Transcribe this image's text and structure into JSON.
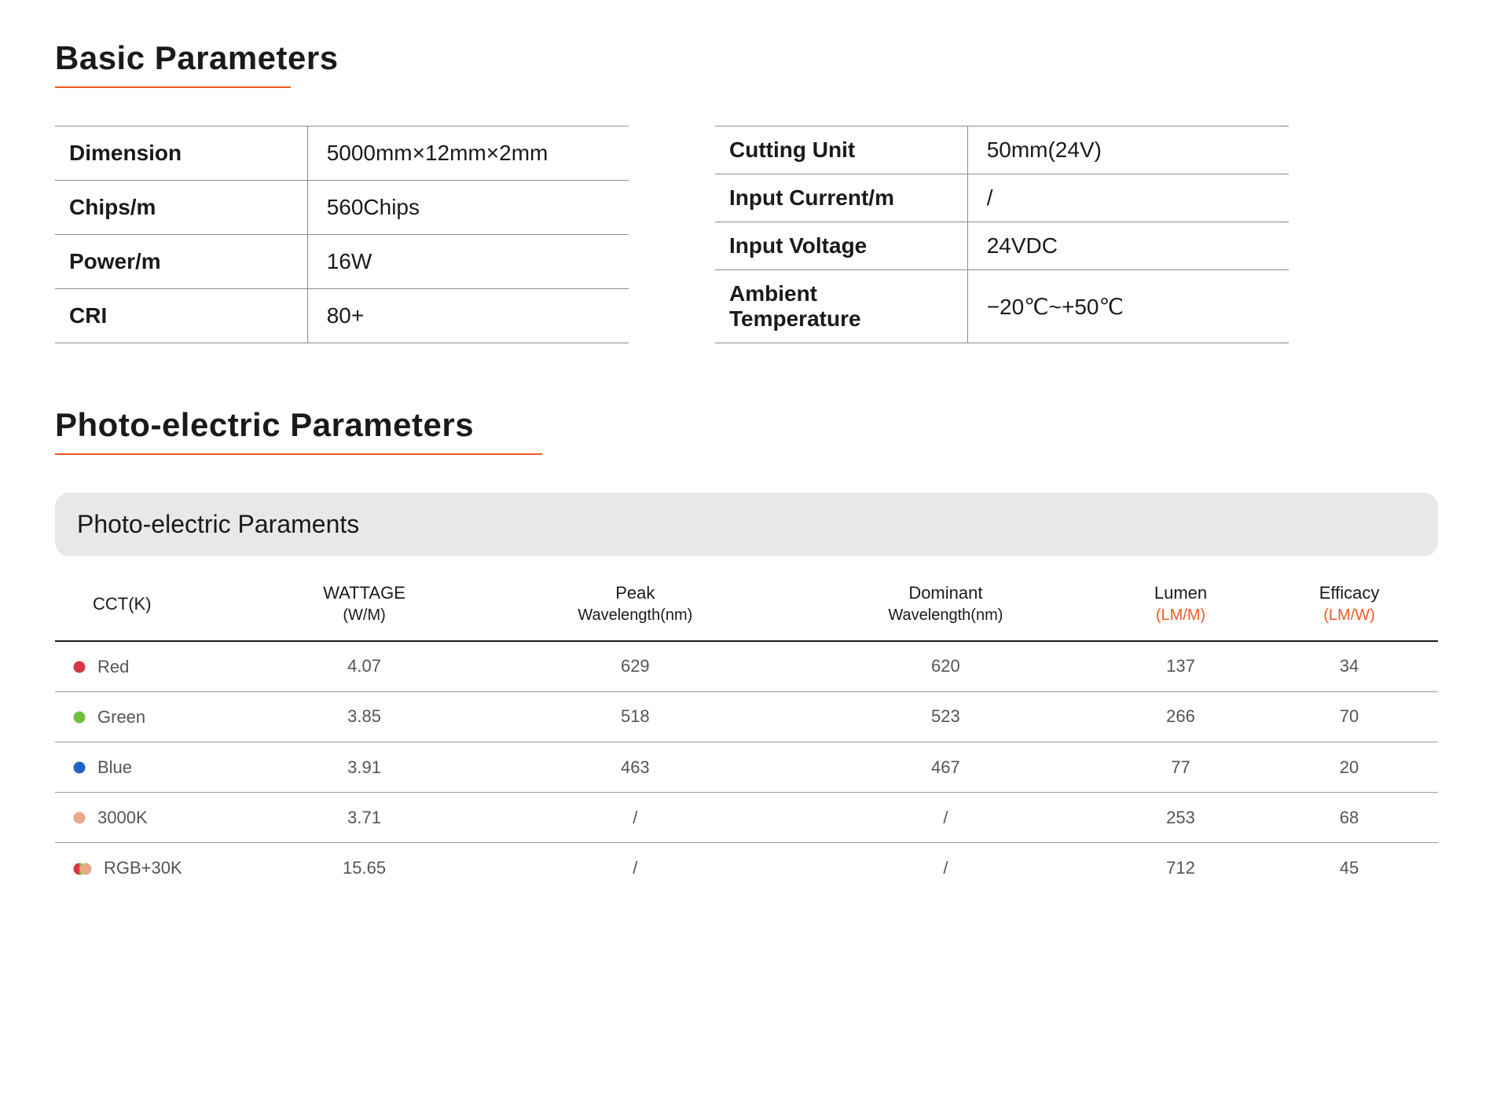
{
  "colors": {
    "accent": "#ee5a24",
    "text": "#1a1a1a",
    "muted": "#555555",
    "border": "#8a8a8a",
    "header_bar_bg": "#e8e8e8",
    "table_header_border": "#1a1a1a",
    "red_dot": "#d63645",
    "green_dot": "#6fbf3f",
    "blue_dot": "#1e63c4",
    "warm_dot": "#e8a98a"
  },
  "basic": {
    "title": "Basic Parameters",
    "left": [
      {
        "label": "Dimension",
        "value": "5000mm×12mm×2mm"
      },
      {
        "label": "Chips/m",
        "value": "560Chips"
      },
      {
        "label": "Power/m",
        "value": "16W"
      },
      {
        "label": "CRI",
        "value": "80+"
      }
    ],
    "right": [
      {
        "label": "Cutting Unit",
        "value": "50mm(24V)"
      },
      {
        "label": "Input Current/m",
        "value": "/"
      },
      {
        "label": "Input Voltage",
        "value": "24VDC"
      },
      {
        "label": "Ambient Temperature",
        "value": "−20℃~+50℃"
      }
    ]
  },
  "photo": {
    "title": "Photo-electric Parameters",
    "header_bar": "Photo-electric Paraments",
    "columns": [
      {
        "line1": "CCT(K)",
        "line2": ""
      },
      {
        "line1": "WATTAGE",
        "line2": "(W/M)"
      },
      {
        "line1": "Peak",
        "line2": "Wavelength(nm)"
      },
      {
        "line1": "Dominant",
        "line2": "Wavelength(nm)"
      },
      {
        "line1": "Lumen",
        "line2": "(LM/M)",
        "accent": true
      },
      {
        "line1": "Efficacy",
        "line2": "(LM/W)",
        "accent": true
      }
    ],
    "rows": [
      {
        "dot": "red",
        "cct": "Red",
        "wattage": "4.07",
        "peak": "629",
        "dominant": "620",
        "lumen": "137",
        "efficacy": "34"
      },
      {
        "dot": "green",
        "cct": "Green",
        "wattage": "3.85",
        "peak": "518",
        "dominant": "523",
        "lumen": "266",
        "efficacy": "70"
      },
      {
        "dot": "blue",
        "cct": "Blue",
        "wattage": "3.91",
        "peak": "463",
        "dominant": "467",
        "lumen": "77",
        "efficacy": "20"
      },
      {
        "dot": "warm",
        "cct": "3000K",
        "wattage": "3.71",
        "peak": "/",
        "dominant": "/",
        "lumen": "253",
        "efficacy": "68"
      },
      {
        "dot": "rgb30k",
        "cct": "RGB+30K",
        "wattage": "15.65",
        "peak": "/",
        "dominant": "/",
        "lumen": "712",
        "efficacy": "45",
        "last": true
      }
    ]
  }
}
